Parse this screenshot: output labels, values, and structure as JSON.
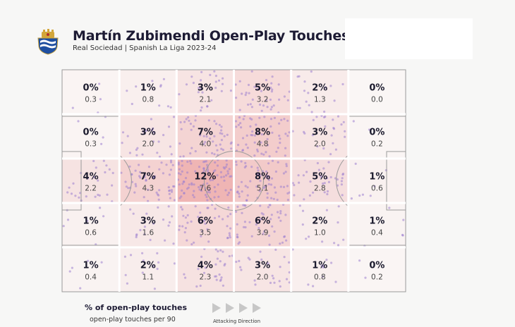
{
  "header": {
    "title": "Martín Zubimendi Open-Play Touches",
    "subtitle": "Real Sociedad | Spanish La Liga 2023-24"
  },
  "legend": {
    "main": "% of open-play touches",
    "sub": "open-play touches per 90",
    "direction": "Attacking Direction"
  },
  "chart_data": {
    "type": "heatmap",
    "title": "Martín Zubimendi Open-Play Touches",
    "subtitle": "Real Sociedad | Spanish La Liga 2023-24",
    "value_label": "% of open-play touches",
    "secondary_label": "open-play touches per 90",
    "attacking_direction": "left-to-right",
    "grid": {
      "rows": 5,
      "cols": 6
    },
    "percent": [
      [
        "0%",
        "1%",
        "3%",
        "5%",
        "2%",
        "0%"
      ],
      [
        "0%",
        "3%",
        "7%",
        "8%",
        "3%",
        "0%"
      ],
      [
        "4%",
        "7%",
        "12%",
        "8%",
        "5%",
        "1%"
      ],
      [
        "1%",
        "3%",
        "6%",
        "6%",
        "2%",
        "1%"
      ],
      [
        "1%",
        "2%",
        "4%",
        "3%",
        "1%",
        "0%"
      ]
    ],
    "per90": [
      [
        "0.3",
        "0.8",
        "2.1",
        "3.2",
        "1.3",
        "0.0"
      ],
      [
        "0.3",
        "2.0",
        "4.0",
        "4.8",
        "2.0",
        "0.2"
      ],
      [
        "2.2",
        "4.3",
        "7.6",
        "5.1",
        "2.8",
        "0.6"
      ],
      [
        "0.6",
        "1.6",
        "3.5",
        "3.9",
        "1.0",
        "0.4"
      ],
      [
        "0.4",
        "1.1",
        "2.3",
        "2.0",
        "0.8",
        "0.2"
      ]
    ],
    "colors": {
      "heat": "#e06060",
      "touch_dot": "#9d7fd0",
      "background": "#f7f7f6",
      "text": "#1c1b2e"
    }
  }
}
